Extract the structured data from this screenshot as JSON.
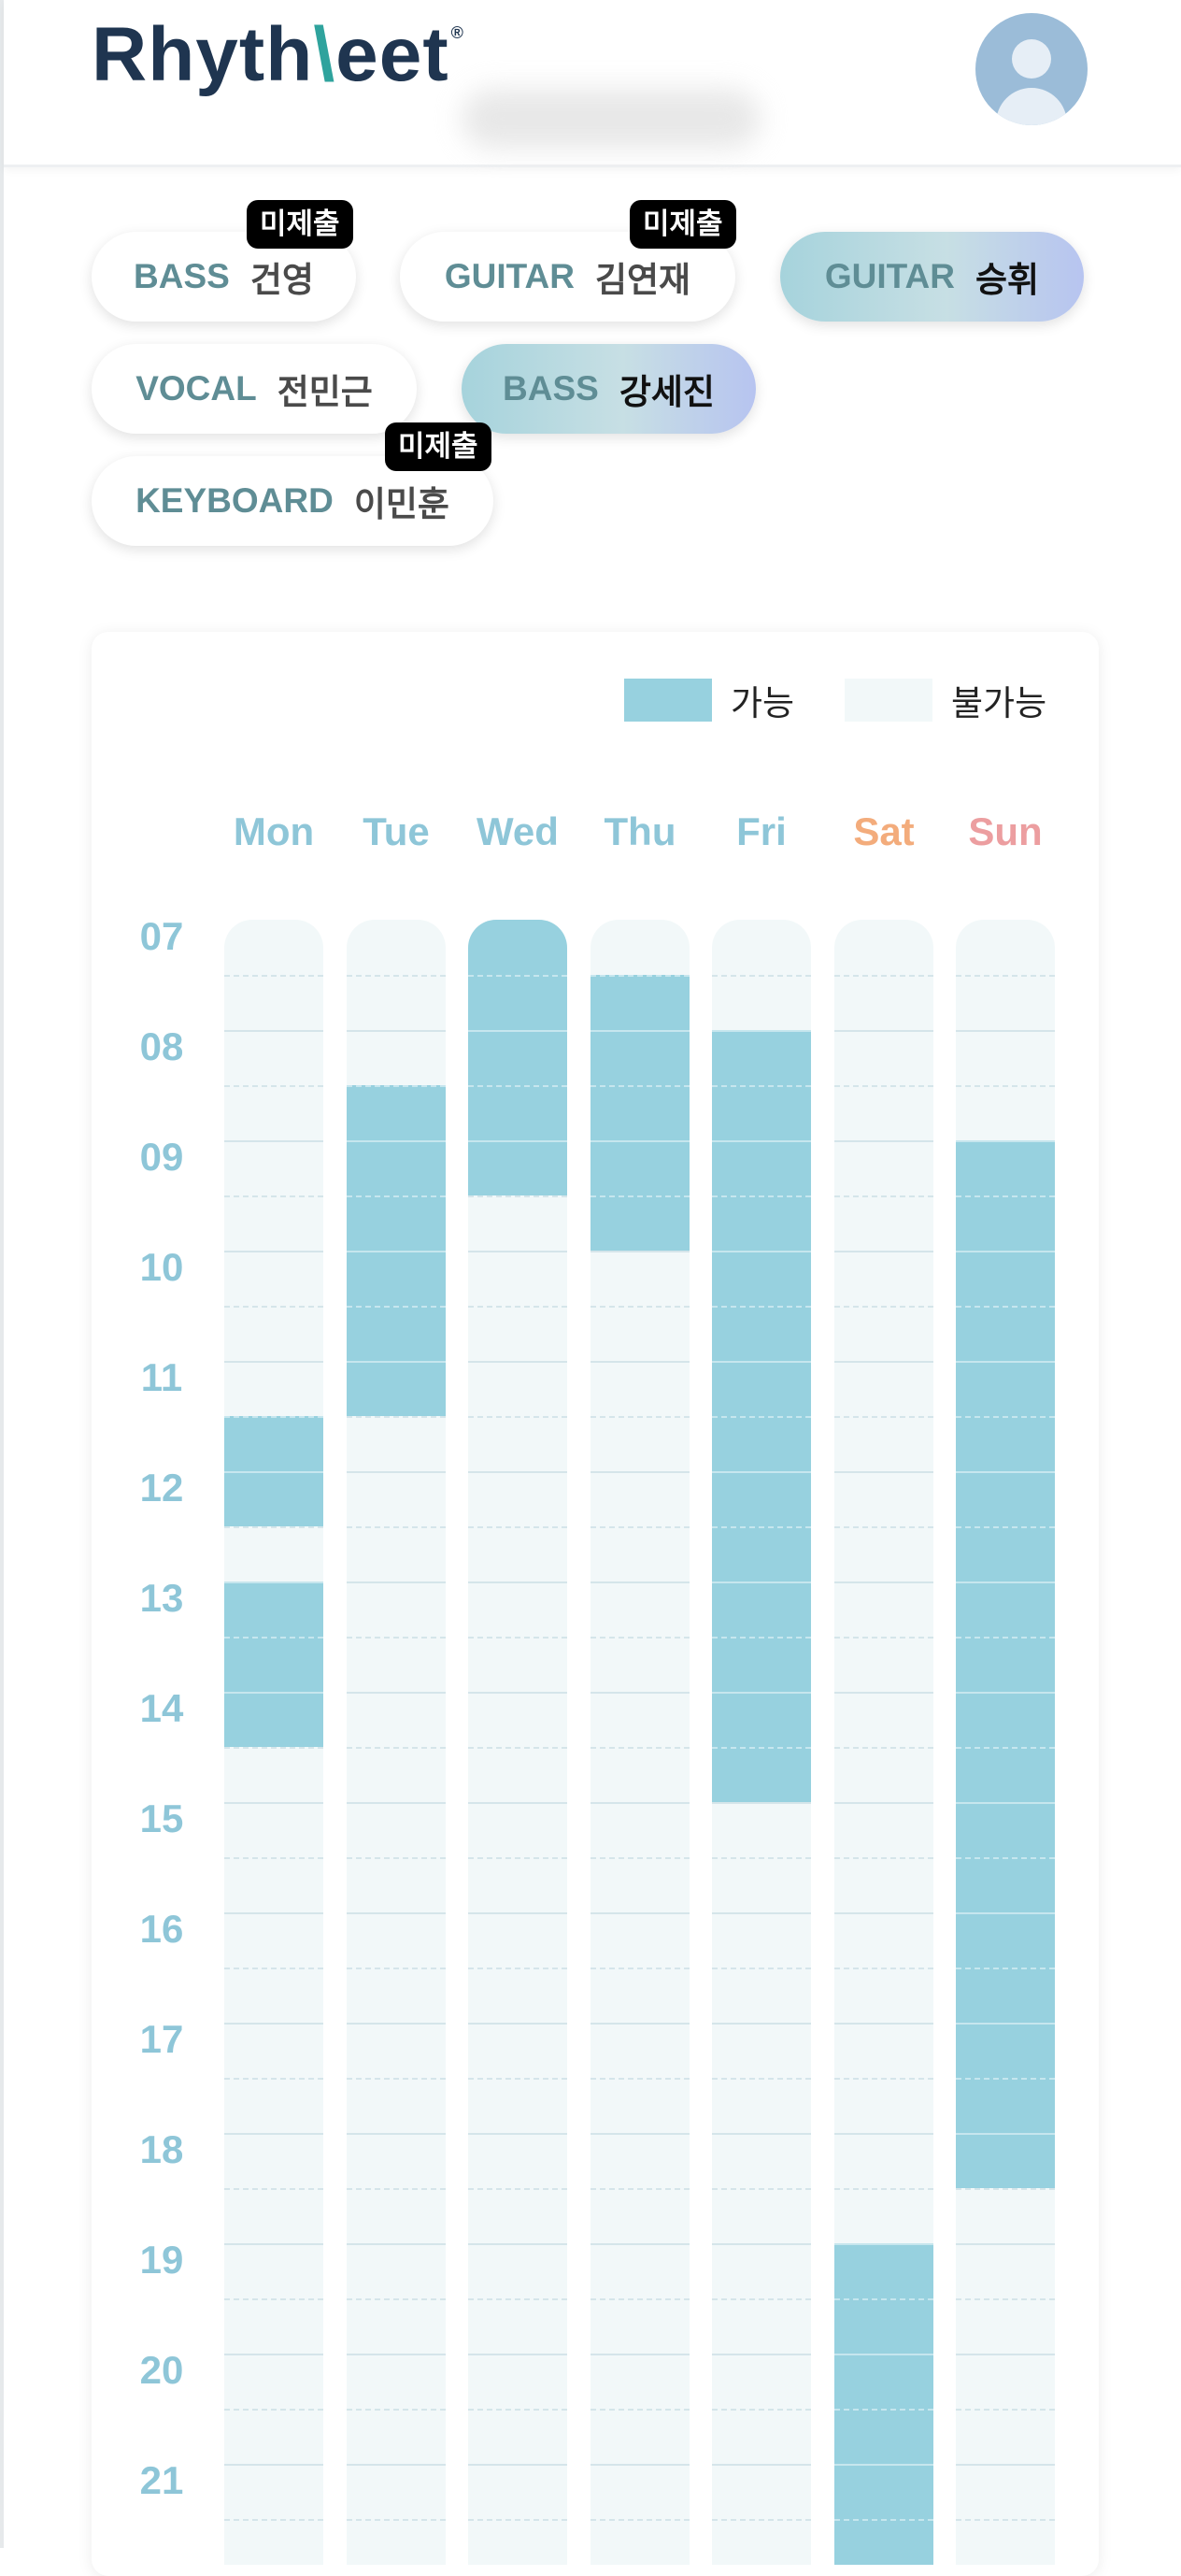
{
  "header": {
    "logo_part1": "Rhyth",
    "logo_part2": "\\",
    "logo_part3": "eet",
    "logo_mark": "®",
    "avatar_icon": "user-avatar-icon"
  },
  "members": [
    {
      "part": "BASS",
      "name": "건영",
      "badge": "미제출",
      "selected": false
    },
    {
      "part": "GUITAR",
      "name": "김연재",
      "badge": "미제출",
      "selected": false
    },
    {
      "part": "GUITAR",
      "name": "승휘",
      "badge": "",
      "selected": true
    },
    {
      "part": "VOCAL",
      "name": "전민근",
      "badge": "",
      "selected": false
    },
    {
      "part": "BASS",
      "name": "강세진",
      "badge": "",
      "selected": true
    },
    {
      "part": "KEYBOARD",
      "name": "이민훈",
      "badge": "미제출",
      "selected": false
    }
  ],
  "legend": {
    "available_label": "가능",
    "unavailable_label": "불가능",
    "available_color": "#97d1df",
    "unavailable_color": "#f2f8f9"
  },
  "days": [
    "Mon",
    "Tue",
    "Wed",
    "Thu",
    "Fri",
    "Sat",
    "Sun"
  ],
  "day_colors": {
    "weekday": "#8ec6d8",
    "sat": "#f3ac7c",
    "sun": "#ec9ea0"
  },
  "hours": [
    "07",
    "08",
    "09",
    "10",
    "11",
    "12",
    "13",
    "14",
    "15",
    "16",
    "17",
    "18",
    "19",
    "20",
    "21"
  ],
  "availability": {
    "Mon": [
      [
        11.5,
        12.5
      ],
      [
        13.0,
        14.5
      ]
    ],
    "Tue": [
      [
        8.5,
        11.5
      ]
    ],
    "Wed": [
      [
        7.0,
        9.5
      ]
    ],
    "Thu": [
      [
        7.5,
        10.0
      ]
    ],
    "Fri": [
      [
        8.0,
        15.0
      ]
    ],
    "Sat": [
      [
        19.0,
        22.0
      ]
    ],
    "Sun": [
      [
        9.0,
        18.5
      ]
    ]
  }
}
